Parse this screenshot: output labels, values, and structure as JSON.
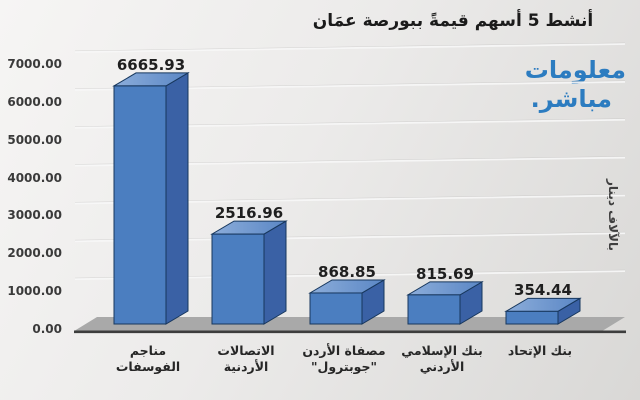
{
  "chart_data": {
    "type": "bar",
    "style_3d": true,
    "title": "أنشط 5 أسهم قيمةً ببورصة عمَان",
    "categories": [
      "مناجم الفوسفات",
      "الاتصالات الأردنية",
      "مصفاة الأردن \"جوبترول\"",
      "بنك الإسلامي الأردني",
      "بنك الإتحاد"
    ],
    "categories_display": [
      "مناجم\nالفوسفات",
      "الاتصالات\nالأردنية",
      "مصفاة الأردن\n\"جوبترول\"",
      "بنك الإسلامي\nالأردني",
      "بنك الإتحاد"
    ],
    "values": [
      6665.93,
      2516.96,
      868.85,
      815.69,
      354.44
    ],
    "data_labels": [
      "6665.93",
      "2516.96",
      "868.85",
      "815.69",
      "354.44"
    ],
    "yticks": [
      "7000.00",
      "6000.00",
      "5000.00",
      "4000.00",
      "3000.00",
      "2000.00",
      "1000.00",
      "0.00"
    ],
    "ylim": [
      0,
      7000
    ],
    "ylabel": "بالآلاف دينار",
    "xlabel": "",
    "legend": null,
    "grid": true,
    "colors": {
      "bar_front": "#4b7ec0",
      "bar_side": "#3a61a5",
      "bar_top_light": "#8cadda",
      "bar_top_dark": "#5b87c5",
      "bar_outline": "#17375d",
      "floor": "#a9a9a9",
      "baseline": "#3d3d3d",
      "gridline": "#f8f8f8",
      "tick_text": "#3a3a3a",
      "label_text": "#1f1f1f"
    }
  },
  "logo": {
    "line1": "معلومات",
    "line2": "مباشر.",
    "color": "#2c7cc0"
  }
}
